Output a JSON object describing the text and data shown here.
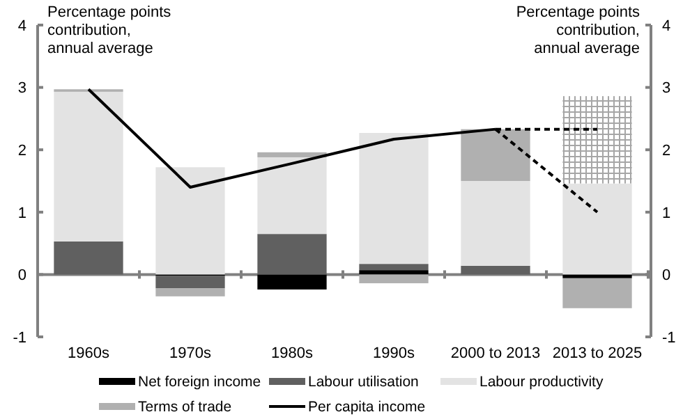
{
  "chart_data": {
    "type": "bar",
    "stacked": true,
    "ylabel": "Percentage points contribution, annual average",
    "y2label": "Percentage points contribution, annual average",
    "categories": [
      "1960s",
      "1970s",
      "1980s",
      "1990s",
      "2000 to 2013",
      "2013 to 2025"
    ],
    "series": [
      {
        "name": "Net foreign income",
        "color": "#000000",
        "values": [
          0,
          -0.02,
          -0.24,
          0.07,
          0,
          -0.06
        ]
      },
      {
        "name": "Labour utilisation",
        "color": "#606060",
        "values": [
          0.53,
          -0.2,
          0.65,
          0.1,
          0.14,
          0
        ]
      },
      {
        "name": "Labour productivity",
        "color": "#e3e3e3",
        "values": [
          2.4,
          1.72,
          1.23,
          2.1,
          1.36,
          1.46
        ]
      },
      {
        "name": "Terms of trade",
        "color": "#b0b0b0",
        "values": [
          0.04,
          -0.13,
          0.08,
          -0.14,
          0.83,
          -0.48
        ]
      },
      {
        "color": "#a6a6a6",
        "values": [
          null,
          null,
          null,
          null,
          null,
          1.4
        ]
      },
      {
        "name": "Per capita income",
        "type": "line",
        "color": "#000000",
        "line_style": "solid",
        "values": [
          2.97,
          1.4,
          1.78,
          2.17,
          2.33,
          null
        ]
      },
      {
        "type": "line",
        "color": "#000000",
        "line_style": "dashed",
        "values": [
          null,
          null,
          null,
          null,
          2.33,
          2.33
        ]
      },
      {
        "type": "line",
        "color": "#000000",
        "line_style": "dashed",
        "values": [
          null,
          null,
          null,
          null,
          2.33,
          1.0
        ]
      }
    ],
    "ylim": [
      -1,
      4
    ],
    "yticks": [
      -1,
      0,
      1,
      2,
      3,
      4
    ],
    "y2lim": [
      -1,
      4
    ],
    "y2ticks": [
      -1,
      0,
      1,
      2,
      3,
      4
    ],
    "legend": "bottom"
  }
}
